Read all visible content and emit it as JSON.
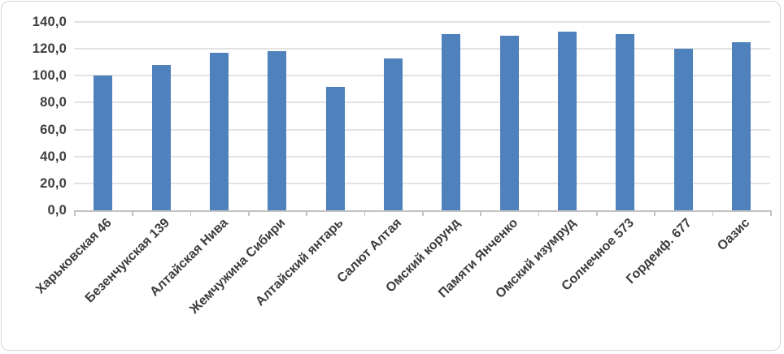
{
  "chart_data": {
    "type": "bar",
    "title": "",
    "xlabel": "",
    "ylabel": "",
    "categories": [
      "Харьковская 46",
      "Безенчукская 139",
      "Алтайская Нива",
      "Жемчужина Сибири",
      "Алтайский янтарь",
      "Салют Алтая",
      "Омский корунд",
      "Памяти Янченко",
      "Омский изумруд",
      "Солнечное 573",
      "Гордеиф. 677",
      "Оазис"
    ],
    "values": [
      100,
      108,
      117,
      118,
      92,
      113,
      131,
      130,
      133,
      131,
      120,
      125
    ],
    "ylim": [
      0,
      140
    ],
    "ytick_step": 20,
    "ytick_labels": [
      "0,0",
      "20,0",
      "40,0",
      "60,0",
      "80,0",
      "100,0",
      "120,0",
      "140,0"
    ],
    "grid": true,
    "legend": "none",
    "colors": {
      "bar": "#4f81bd",
      "gridline": "#e3e3e3",
      "axis_line": "#c3c3c3",
      "text": "#3d3d3d",
      "frame_border": "#d4d4d4",
      "background": "#ffffff"
    }
  }
}
